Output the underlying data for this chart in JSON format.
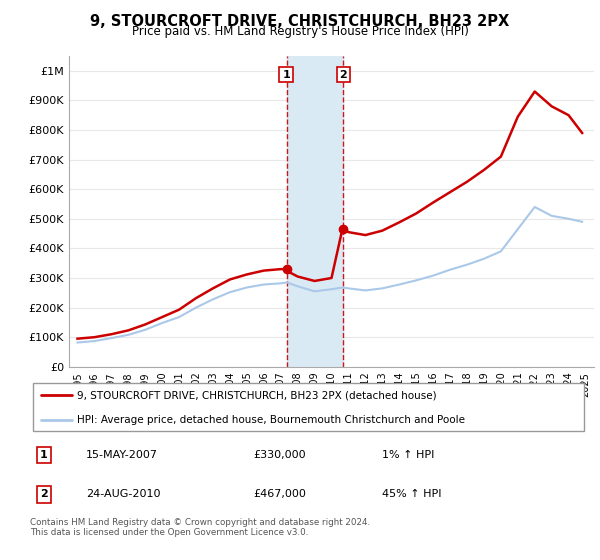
{
  "title": "9, STOURCROFT DRIVE, CHRISTCHURCH, BH23 2PX",
  "subtitle": "Price paid vs. HM Land Registry's House Price Index (HPI)",
  "ylabel_ticks": [
    "£0",
    "£100K",
    "£200K",
    "£300K",
    "£400K",
    "£500K",
    "£600K",
    "£700K",
    "£800K",
    "£900K",
    "£1M"
  ],
  "ytick_values": [
    0,
    100000,
    200000,
    300000,
    400000,
    500000,
    600000,
    700000,
    800000,
    900000,
    1000000
  ],
  "ylim": [
    0,
    1050000
  ],
  "xlim_start": 1994.5,
  "xlim_end": 2025.5,
  "hpi_color": "#aac8e8",
  "price_color": "#cc0000",
  "sale1_date": 2007.37,
  "sale1_price": 330000,
  "sale2_date": 2010.65,
  "sale2_price": 467000,
  "sale1_label": "1",
  "sale2_label": "2",
  "legend_line1": "9, STOURCROFT DRIVE, CHRISTCHURCH, BH23 2PX (detached house)",
  "legend_line2": "HPI: Average price, detached house, Bournemouth Christchurch and Poole",
  "table_row1": [
    "1",
    "15-MAY-2007",
    "£330,000",
    "1% ↑ HPI"
  ],
  "table_row2": [
    "2",
    "24-AUG-2010",
    "£467,000",
    "45% ↑ HPI"
  ],
  "footnote": "Contains HM Land Registry data © Crown copyright and database right 2024.\nThis data is licensed under the Open Government Licence v3.0.",
  "background_color": "#ffffff",
  "grid_color": "#e8e8e8",
  "shade_color": "#daeaf5",
  "vline_color": "#cc0000",
  "hpi_years": [
    1995,
    1996,
    1997,
    1998,
    1999,
    2000,
    2001,
    2002,
    2003,
    2004,
    2005,
    2006,
    2007,
    2007.37,
    2008,
    2009,
    2010,
    2010.65,
    2011,
    2012,
    2013,
    2014,
    2015,
    2016,
    2017,
    2018,
    2019,
    2020,
    2021,
    2022,
    2023,
    2024,
    2024.8
  ],
  "hpi_prices": [
    82000,
    87000,
    97000,
    108000,
    125000,
    148000,
    168000,
    200000,
    228000,
    252000,
    268000,
    278000,
    282000,
    285000,
    272000,
    255000,
    262000,
    268000,
    265000,
    258000,
    265000,
    278000,
    292000,
    308000,
    328000,
    345000,
    365000,
    390000,
    465000,
    540000,
    510000,
    500000,
    490000
  ],
  "red_years": [
    1995,
    1996,
    1997,
    1998,
    1999,
    2000,
    2001,
    2002,
    2003,
    2004,
    2005,
    2006,
    2007,
    2007.37,
    2007.5,
    2008,
    2009,
    2010,
    2010.65,
    2011,
    2012,
    2013,
    2014,
    2015,
    2016,
    2017,
    2018,
    2019,
    2020,
    2021,
    2022,
    2023,
    2024,
    2024.8
  ],
  "red_prices": [
    95000,
    100000,
    110000,
    123000,
    143000,
    168000,
    193000,
    232000,
    265000,
    295000,
    312000,
    325000,
    330000,
    330000,
    320000,
    305000,
    290000,
    300000,
    467000,
    455000,
    445000,
    460000,
    488000,
    518000,
    555000,
    590000,
    625000,
    665000,
    710000,
    845000,
    930000,
    880000,
    850000,
    790000
  ]
}
